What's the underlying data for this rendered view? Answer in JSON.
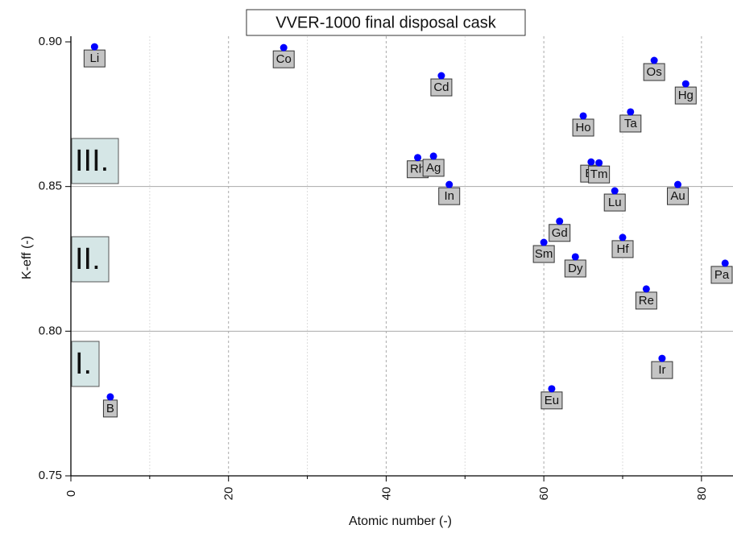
{
  "chart_data": {
    "type": "scatter",
    "title": "VVER-1000 final disposal cask",
    "x_label": "Atomic number (-)",
    "y_label": "K-eff (-)",
    "x": [
      3,
      27,
      47,
      74,
      78,
      65,
      71,
      44,
      46,
      48,
      66,
      67,
      69,
      77,
      62,
      60,
      70,
      64,
      83,
      73,
      75,
      61,
      5
    ],
    "values": [
      0.8983,
      0.898,
      0.8883,
      0.8936,
      0.8855,
      0.8744,
      0.8758,
      0.86,
      0.8605,
      0.8507,
      0.8585,
      0.8582,
      0.8485,
      0.8507,
      0.838,
      0.8307,
      0.8324,
      0.8257,
      0.8235,
      0.8146,
      0.7906,
      0.7801,
      0.7773
    ],
    "point_labels": [
      "Li",
      "Co",
      "Cd",
      "Os",
      "Hg",
      "Ho",
      "Ta",
      "Rh",
      "Ag",
      "In",
      "Er",
      "Tm",
      "Lu",
      "Au",
      "Gd",
      "Sm",
      "Hf",
      "Dy",
      "Pa",
      "Re",
      "Ir",
      "Eu",
      "B"
    ],
    "color": "#0000ff",
    "xlim": [
      0,
      84
    ],
    "ylim": [
      0.75,
      0.9
    ],
    "xticks": [
      0,
      20,
      40,
      60,
      80
    ],
    "xminorticks": [
      10,
      30,
      50,
      70
    ],
    "yticks": [
      {
        "value": 0.75,
        "label": "0.75"
      },
      {
        "value": 0.8,
        "label": "0.80"
      },
      {
        "value": 0.85,
        "label": "0.85"
      },
      {
        "value": 0.9,
        "label": "0.90"
      }
    ],
    "grid": true,
    "annotations": [
      "III.",
      "II.",
      "I."
    ]
  }
}
